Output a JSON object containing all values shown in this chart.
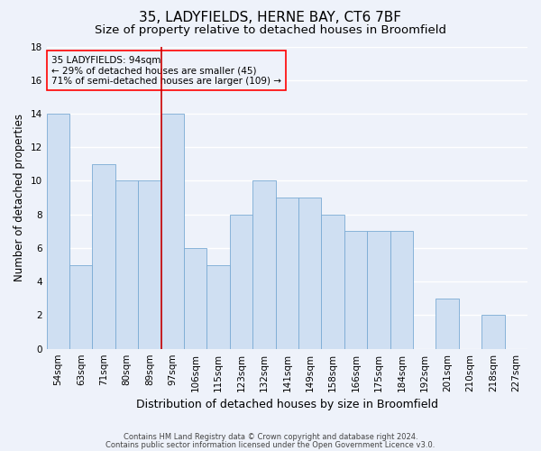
{
  "title1": "35, LADYFIELDS, HERNE BAY, CT6 7BF",
  "title2": "Size of property relative to detached houses in Broomfield",
  "xlabel": "Distribution of detached houses by size in Broomfield",
  "ylabel": "Number of detached properties",
  "categories": [
    "54sqm",
    "63sqm",
    "71sqm",
    "80sqm",
    "89sqm",
    "97sqm",
    "106sqm",
    "115sqm",
    "123sqm",
    "132sqm",
    "141sqm",
    "149sqm",
    "158sqm",
    "166sqm",
    "175sqm",
    "184sqm",
    "192sqm",
    "201sqm",
    "210sqm",
    "218sqm",
    "227sqm"
  ],
  "values": [
    14,
    5,
    11,
    10,
    10,
    14,
    6,
    5,
    8,
    10,
    9,
    9,
    8,
    7,
    7,
    7,
    0,
    3,
    0,
    2,
    0
  ],
  "bar_color": "#cfdff2",
  "bar_edge_color": "#7aaad4",
  "ylim": [
    0,
    18
  ],
  "yticks": [
    0,
    2,
    4,
    6,
    8,
    10,
    12,
    14,
    16,
    18
  ],
  "vline_x_index": 5,
  "vline_color": "#cc0000",
  "annotation_text_line1": "35 LADYFIELDS: 94sqm",
  "annotation_text_line2": "← 29% of detached houses are smaller (45)",
  "annotation_text_line3": "71% of semi-detached houses are larger (109) →",
  "footer1": "Contains HM Land Registry data © Crown copyright and database right 2024.",
  "footer2": "Contains public sector information licensed under the Open Government Licence v3.0.",
  "background_color": "#eef2fa",
  "grid_color": "#ffffff",
  "title1_fontsize": 11,
  "title2_fontsize": 9.5,
  "xlabel_fontsize": 9,
  "ylabel_fontsize": 8.5,
  "tick_fontsize": 7.5,
  "annotation_fontsize": 7.5,
  "footer_fontsize": 6
}
